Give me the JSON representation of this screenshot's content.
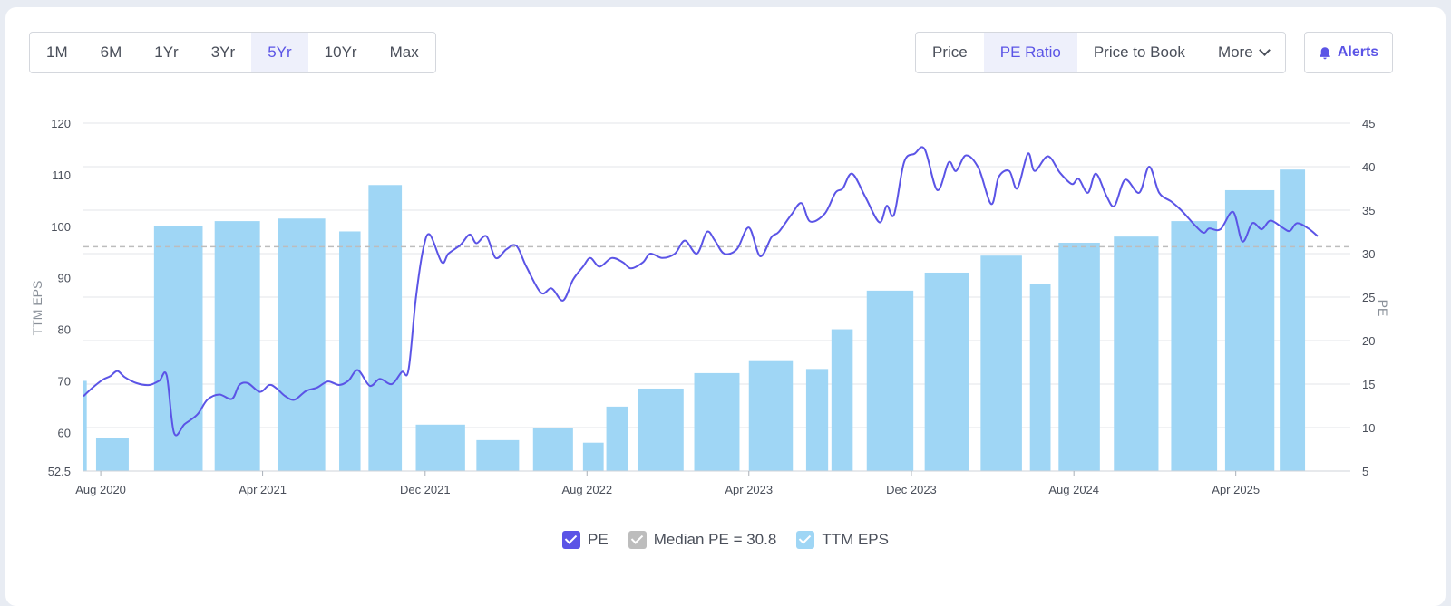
{
  "time_range": {
    "items": [
      "1M",
      "6M",
      "1Yr",
      "3Yr",
      "5Yr",
      "10Yr",
      "Max"
    ],
    "selected": "5Yr"
  },
  "metric_tabs": {
    "items": [
      "Price",
      "PE Ratio",
      "Price to Book"
    ],
    "selected": "PE Ratio",
    "more_label": "More"
  },
  "alerts_label": "Alerts",
  "legend": {
    "pe": "PE",
    "median": "Median PE = 30.8",
    "eps": "TTM EPS"
  },
  "colors": {
    "pe_line": "#5b54e6",
    "eps_bar": "#9fd6f5",
    "median_line": "#bdbdbd",
    "accent": "#5b54e6"
  },
  "chart_data": {
    "type": "bar+line",
    "left_axis": {
      "label": "TTM EPS",
      "ticks": [
        52.5,
        60,
        70,
        80,
        90,
        100,
        110,
        120
      ],
      "range": [
        52.5,
        120
      ]
    },
    "right_axis": {
      "label": "PE",
      "ticks": [
        5,
        10,
        15,
        20,
        25,
        30,
        35,
        40,
        45
      ],
      "range": [
        5,
        45
      ]
    },
    "x_ticks": [
      "Aug 2020",
      "Apr 2021",
      "Dec 2021",
      "Aug 2022",
      "Apr 2023",
      "Dec 2023",
      "Aug 2024",
      "Apr 2025"
    ],
    "x_tick_dates": [
      "2020-08-01",
      "2021-04-01",
      "2021-12-01",
      "2022-08-01",
      "2023-04-01",
      "2023-12-01",
      "2024-08-01",
      "2025-04-01"
    ],
    "x_range": [
      "2020-07-06",
      "2025-09-20"
    ],
    "median_pe": 30.8,
    "eps_bars": [
      {
        "start": "2020-07-06",
        "end": "2020-07-11",
        "value": 70
      },
      {
        "start": "2020-07-25",
        "end": "2020-09-12",
        "value": 59
      },
      {
        "start": "2020-10-20",
        "end": "2021-01-01",
        "value": 100
      },
      {
        "start": "2021-01-19",
        "end": "2021-03-28",
        "value": 101
      },
      {
        "start": "2021-04-24",
        "end": "2021-07-04",
        "value": 101.5
      },
      {
        "start": "2021-07-25",
        "end": "2021-08-26",
        "value": 99
      },
      {
        "start": "2021-09-07",
        "end": "2021-10-27",
        "value": 108
      },
      {
        "start": "2021-11-17",
        "end": "2022-01-30",
        "value": 61.5
      },
      {
        "start": "2022-02-16",
        "end": "2022-04-21",
        "value": 58.5
      },
      {
        "start": "2022-05-12",
        "end": "2022-07-11",
        "value": 60.8
      },
      {
        "start": "2022-07-26",
        "end": "2022-08-26",
        "value": 58
      },
      {
        "start": "2022-08-30",
        "end": "2022-10-01",
        "value": 65
      },
      {
        "start": "2022-10-17",
        "end": "2022-12-24",
        "value": 68.5
      },
      {
        "start": "2023-01-09",
        "end": "2023-03-18",
        "value": 71.5
      },
      {
        "start": "2023-04-01",
        "end": "2023-06-06",
        "value": 74
      },
      {
        "start": "2023-06-26",
        "end": "2023-07-29",
        "value": 72.3
      },
      {
        "start": "2023-08-03",
        "end": "2023-09-04",
        "value": 80
      },
      {
        "start": "2023-09-25",
        "end": "2023-12-04",
        "value": 87.5
      },
      {
        "start": "2023-12-21",
        "end": "2024-02-26",
        "value": 91
      },
      {
        "start": "2024-03-14",
        "end": "2024-05-15",
        "value": 94.3
      },
      {
        "start": "2024-05-27",
        "end": "2024-06-27",
        "value": 88.8
      },
      {
        "start": "2024-07-09",
        "end": "2024-09-09",
        "value": 96.8
      },
      {
        "start": "2024-09-30",
        "end": "2024-12-06",
        "value": 98
      },
      {
        "start": "2024-12-25",
        "end": "2025-03-04",
        "value": 101
      },
      {
        "start": "2025-03-16",
        "end": "2025-05-29",
        "value": 107
      },
      {
        "start": "2025-06-06",
        "end": "2025-07-14",
        "value": 111
      }
    ],
    "pe_series": [
      [
        "2020-07-06",
        13.6
      ],
      [
        "2020-07-20",
        14.6
      ],
      [
        "2020-08-04",
        15.5
      ],
      [
        "2020-08-15",
        15.9
      ],
      [
        "2020-08-26",
        16.5
      ],
      [
        "2020-09-06",
        15.8
      ],
      [
        "2020-09-24",
        15.1
      ],
      [
        "2020-10-13",
        14.9
      ],
      [
        "2020-10-28",
        15.4
      ],
      [
        "2020-11-08",
        16.0
      ],
      [
        "2020-11-19",
        9.4
      ],
      [
        "2020-12-05",
        10.4
      ],
      [
        "2020-12-24",
        11.5
      ],
      [
        "2021-01-08",
        13.2
      ],
      [
        "2021-01-26",
        13.8
      ],
      [
        "2021-02-14",
        13.3
      ],
      [
        "2021-02-25",
        14.9
      ],
      [
        "2021-03-10",
        15.1
      ],
      [
        "2021-03-28",
        14.1
      ],
      [
        "2021-04-11",
        14.9
      ],
      [
        "2021-04-22",
        14.5
      ],
      [
        "2021-05-05",
        13.6
      ],
      [
        "2021-05-19",
        13.2
      ],
      [
        "2021-06-05",
        14.2
      ],
      [
        "2021-06-22",
        14.6
      ],
      [
        "2021-07-08",
        15.3
      ],
      [
        "2021-07-25",
        14.9
      ],
      [
        "2021-08-08",
        15.4
      ],
      [
        "2021-08-22",
        16.6
      ],
      [
        "2021-09-09",
        14.8
      ],
      [
        "2021-09-24",
        15.6
      ],
      [
        "2021-10-12",
        15.0
      ],
      [
        "2021-10-27",
        16.4
      ],
      [
        "2021-11-06",
        16.6
      ],
      [
        "2021-11-17",
        24.8
      ],
      [
        "2021-11-28",
        30.5
      ],
      [
        "2021-12-08",
        32.2
      ],
      [
        "2021-12-26",
        29.0
      ],
      [
        "2022-01-05",
        30.0
      ],
      [
        "2022-01-23",
        31.0
      ],
      [
        "2022-02-06",
        32.2
      ],
      [
        "2022-02-16",
        31.2
      ],
      [
        "2022-03-03",
        32.0
      ],
      [
        "2022-03-17",
        29.5
      ],
      [
        "2022-04-02",
        30.5
      ],
      [
        "2022-04-17",
        30.9
      ],
      [
        "2022-05-02",
        28.5
      ],
      [
        "2022-05-24",
        25.5
      ],
      [
        "2022-06-09",
        26.0
      ],
      [
        "2022-06-26",
        24.6
      ],
      [
        "2022-07-11",
        27.0
      ],
      [
        "2022-07-26",
        28.5
      ],
      [
        "2022-08-06",
        29.5
      ],
      [
        "2022-08-20",
        28.5
      ],
      [
        "2022-09-07",
        29.5
      ],
      [
        "2022-09-24",
        29.0
      ],
      [
        "2022-10-06",
        28.3
      ],
      [
        "2022-10-24",
        29.0
      ],
      [
        "2022-11-04",
        30.0
      ],
      [
        "2022-11-22",
        29.5
      ],
      [
        "2022-12-11",
        30.0
      ],
      [
        "2022-12-26",
        31.5
      ],
      [
        "2023-01-13",
        30.0
      ],
      [
        "2023-01-28",
        32.5
      ],
      [
        "2023-02-09",
        31.5
      ],
      [
        "2023-02-23",
        30.0
      ],
      [
        "2023-03-14",
        30.5
      ],
      [
        "2023-04-01",
        33.0
      ],
      [
        "2023-04-18",
        29.7
      ],
      [
        "2023-05-05",
        31.9
      ],
      [
        "2023-05-16",
        32.5
      ],
      [
        "2023-06-04",
        34.5
      ],
      [
        "2023-06-19",
        35.8
      ],
      [
        "2023-07-02",
        33.7
      ],
      [
        "2023-07-24",
        34.6
      ],
      [
        "2023-08-09",
        37.0
      ],
      [
        "2023-08-20",
        37.5
      ],
      [
        "2023-09-03",
        39.2
      ],
      [
        "2023-09-23",
        36.5
      ],
      [
        "2023-10-14",
        33.6
      ],
      [
        "2023-10-25",
        35.5
      ],
      [
        "2023-11-05",
        34.5
      ],
      [
        "2023-11-20",
        40.5
      ],
      [
        "2023-12-06",
        41.5
      ],
      [
        "2023-12-21",
        42.0
      ],
      [
        "2024-01-09",
        37.3
      ],
      [
        "2024-01-26",
        40.5
      ],
      [
        "2024-02-06",
        39.5
      ],
      [
        "2024-02-21",
        41.3
      ],
      [
        "2024-03-11",
        39.8
      ],
      [
        "2024-03-30",
        35.7
      ],
      [
        "2024-04-10",
        38.8
      ],
      [
        "2024-04-26",
        39.5
      ],
      [
        "2024-05-08",
        37.5
      ],
      [
        "2024-05-24",
        41.5
      ],
      [
        "2024-06-03",
        39.5
      ],
      [
        "2024-06-23",
        41.2
      ],
      [
        "2024-07-11",
        39.3
      ],
      [
        "2024-07-29",
        38.0
      ],
      [
        "2024-08-08",
        38.6
      ],
      [
        "2024-08-22",
        37.0
      ],
      [
        "2024-09-03",
        39.2
      ],
      [
        "2024-09-19",
        36.6
      ],
      [
        "2024-10-01",
        35.5
      ],
      [
        "2024-10-17",
        38.5
      ],
      [
        "2024-11-07",
        37.0
      ],
      [
        "2024-11-22",
        40.0
      ],
      [
        "2024-12-07",
        37.0
      ],
      [
        "2024-12-25",
        36.0
      ],
      [
        "2025-01-09",
        35.0
      ],
      [
        "2025-02-09",
        32.5
      ],
      [
        "2025-02-20",
        32.9
      ],
      [
        "2025-03-09",
        32.8
      ],
      [
        "2025-03-28",
        34.8
      ],
      [
        "2025-04-11",
        31.4
      ],
      [
        "2025-04-26",
        33.5
      ],
      [
        "2025-05-10",
        32.8
      ],
      [
        "2025-05-23",
        33.8
      ],
      [
        "2025-06-10",
        33.0
      ],
      [
        "2025-06-21",
        32.6
      ],
      [
        "2025-07-02",
        33.5
      ],
      [
        "2025-07-19",
        32.9
      ],
      [
        "2025-08-02",
        32.0
      ]
    ]
  }
}
